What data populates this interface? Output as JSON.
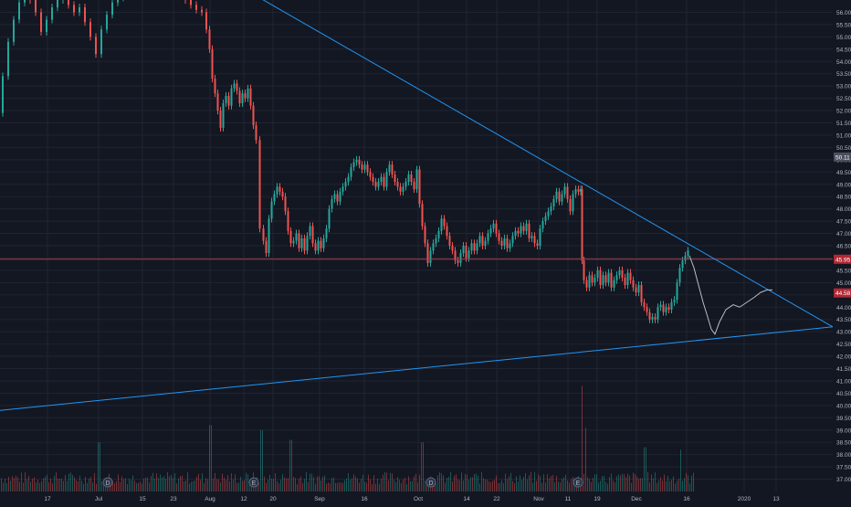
{
  "colors": {
    "background": "#131722",
    "grid": "#1f2433",
    "axis_text": "#b2b5be",
    "up": "#26a69a",
    "down": "#ef5350",
    "trendline": "#2196f3",
    "hline": "#a63d45",
    "projection": "#b8bcc8",
    "event_marker": "#2a3448",
    "price_tag_current": "#4a4f5e",
    "price_tag_red": "#b22833"
  },
  "chart_data": {
    "type": "candlestick",
    "y_axis": {
      "min": 36.5,
      "max": 56.5,
      "ticks": [
        "37.00",
        "37.50",
        "38.00",
        "38.50",
        "39.00",
        "39.50",
        "40.00",
        "40.50",
        "41.00",
        "41.50",
        "42.00",
        "42.50",
        "43.00",
        "43.50",
        "44.00",
        "44.50",
        "45.00",
        "45.50",
        "46.00",
        "46.50",
        "47.00",
        "47.50",
        "48.00",
        "48.50",
        "49.00",
        "49.50",
        "50.00",
        "50.50",
        "51.00",
        "51.50",
        "52.00",
        "52.50",
        "53.00",
        "53.50",
        "54.00",
        "54.50",
        "55.00",
        "55.50",
        "56.00"
      ]
    },
    "x_axis": {
      "ticks": [
        {
          "label": "17",
          "x": 52
        },
        {
          "label": "Jul",
          "x": 108
        },
        {
          "label": "15",
          "x": 156
        },
        {
          "label": "23",
          "x": 190
        },
        {
          "label": "Aug",
          "x": 230
        },
        {
          "label": "12",
          "x": 267
        },
        {
          "label": "20",
          "x": 299
        },
        {
          "label": "Sep",
          "x": 350
        },
        {
          "label": "16",
          "x": 399
        },
        {
          "label": "Oct",
          "x": 458
        },
        {
          "label": "14",
          "x": 511
        },
        {
          "label": "22",
          "x": 544
        },
        {
          "label": "Nov",
          "x": 590
        },
        {
          "label": "11",
          "x": 622
        },
        {
          "label": "19",
          "x": 654
        },
        {
          "label": "Dec",
          "x": 697
        },
        {
          "label": "16",
          "x": 752
        },
        {
          "label": "2020",
          "x": 815
        },
        {
          "label": "13",
          "x": 850
        }
      ]
    },
    "price_path": [
      [
        0,
        51.9
      ],
      [
        6,
        53.4
      ],
      [
        12,
        54.8
      ],
      [
        18,
        55.7
      ],
      [
        24,
        56.4
      ],
      [
        30,
        56.8
      ],
      [
        36,
        56.5
      ],
      [
        42,
        56.0
      ],
      [
        48,
        55.2
      ],
      [
        54,
        55.7
      ],
      [
        60,
        56.2
      ],
      [
        66,
        56.5
      ],
      [
        72,
        56.7
      ],
      [
        78,
        56.3
      ],
      [
        84,
        56.0
      ],
      [
        90,
        56.2
      ],
      [
        96,
        55.6
      ],
      [
        102,
        55.0
      ],
      [
        108,
        54.3
      ],
      [
        114,
        55.3
      ],
      [
        120,
        55.9
      ],
      [
        126,
        56.4
      ],
      [
        132,
        56.6
      ],
      [
        138,
        56.7
      ],
      [
        144,
        56.8
      ],
      [
        150,
        56.9
      ],
      [
        200,
        56.7
      ],
      [
        206,
        56.5
      ],
      [
        212,
        56.3
      ],
      [
        218,
        56.1
      ],
      [
        224,
        56.0
      ],
      [
        228,
        55.3
      ],
      [
        231,
        54.5
      ],
      [
        234,
        53.3
      ],
      [
        237,
        52.7
      ],
      [
        240,
        52.0
      ],
      [
        243,
        51.3
      ],
      [
        246,
        52.3
      ],
      [
        249,
        52.6
      ],
      [
        252,
        52.2
      ],
      [
        255,
        52.9
      ],
      [
        258,
        53.1
      ],
      [
        261,
        52.8
      ],
      [
        264,
        52.3
      ],
      [
        267,
        52.7
      ],
      [
        270,
        52.5
      ],
      [
        273,
        52.9
      ],
      [
        276,
        52.2
      ],
      [
        279,
        51.4
      ],
      [
        282,
        50.8
      ],
      [
        287,
        47.2
      ],
      [
        290,
        46.7
      ],
      [
        293,
        46.2
      ],
      [
        296,
        47.6
      ],
      [
        299,
        48.3
      ],
      [
        302,
        48.6
      ],
      [
        305,
        48.9
      ],
      [
        308,
        48.7
      ],
      [
        311,
        48.5
      ],
      [
        314,
        47.9
      ],
      [
        317,
        47.1
      ],
      [
        320,
        46.6
      ],
      [
        323,
        46.7
      ],
      [
        326,
        47.0
      ],
      [
        329,
        46.4
      ],
      [
        332,
        46.8
      ],
      [
        335,
        46.3
      ],
      [
        338,
        46.9
      ],
      [
        341,
        47.3
      ],
      [
        344,
        46.6
      ],
      [
        347,
        46.3
      ],
      [
        350,
        46.7
      ],
      [
        353,
        46.4
      ],
      [
        356,
        46.8
      ],
      [
        359,
        47.2
      ],
      [
        362,
        48.0
      ],
      [
        365,
        48.4
      ],
      [
        368,
        48.6
      ],
      [
        371,
        48.3
      ],
      [
        374,
        48.7
      ],
      [
        377,
        48.9
      ],
      [
        380,
        49.1
      ],
      [
        383,
        49.3
      ],
      [
        386,
        49.7
      ],
      [
        389,
        49.9
      ],
      [
        392,
        50.0
      ],
      [
        395,
        49.8
      ],
      [
        398,
        49.6
      ],
      [
        401,
        49.8
      ],
      [
        404,
        49.5
      ],
      [
        407,
        49.3
      ],
      [
        410,
        49.1
      ],
      [
        413,
        48.9
      ],
      [
        416,
        49.1
      ],
      [
        419,
        49.3
      ],
      [
        422,
        48.9
      ],
      [
        425,
        49.5
      ],
      [
        428,
        49.8
      ],
      [
        431,
        49.4
      ],
      [
        434,
        49.1
      ],
      [
        437,
        48.9
      ],
      [
        440,
        48.7
      ],
      [
        443,
        48.9
      ],
      [
        446,
        49.1
      ],
      [
        449,
        49.4
      ],
      [
        452,
        49.1
      ],
      [
        455,
        48.8
      ],
      [
        458,
        49.6
      ],
      [
        461,
        48.2
      ],
      [
        464,
        47.3
      ],
      [
        467,
        46.6
      ],
      [
        470,
        45.8
      ],
      [
        473,
        46.3
      ],
      [
        476,
        46.6
      ],
      [
        479,
        46.8
      ],
      [
        482,
        47.1
      ],
      [
        485,
        47.6
      ],
      [
        488,
        47.3
      ],
      [
        491,
        46.9
      ],
      [
        494,
        46.5
      ],
      [
        497,
        46.3
      ],
      [
        500,
        45.9
      ],
      [
        503,
        45.8
      ],
      [
        506,
        46.2
      ],
      [
        509,
        46.5
      ],
      [
        512,
        46.0
      ],
      [
        515,
        46.3
      ],
      [
        518,
        46.6
      ],
      [
        521,
        46.3
      ],
      [
        524,
        46.6
      ],
      [
        527,
        46.9
      ],
      [
        530,
        46.5
      ],
      [
        533,
        46.7
      ],
      [
        536,
        47.0
      ],
      [
        539,
        47.2
      ],
      [
        542,
        47.4
      ],
      [
        545,
        47.0
      ],
      [
        548,
        46.7
      ],
      [
        551,
        46.5
      ],
      [
        554,
        46.8
      ],
      [
        557,
        46.4
      ],
      [
        560,
        46.6
      ],
      [
        563,
        46.9
      ],
      [
        566,
        47.1
      ],
      [
        569,
        47.0
      ],
      [
        572,
        47.3
      ],
      [
        575,
        47.1
      ],
      [
        578,
        47.4
      ],
      [
        581,
        46.8
      ],
      [
        584,
        46.9
      ],
      [
        587,
        46.6
      ],
      [
        590,
        46.5
      ],
      [
        593,
        47.2
      ],
      [
        596,
        47.5
      ],
      [
        599,
        47.7
      ],
      [
        602,
        47.9
      ],
      [
        605,
        48.1
      ],
      [
        608,
        48.4
      ],
      [
        611,
        48.7
      ],
      [
        614,
        48.3
      ],
      [
        617,
        48.6
      ],
      [
        620,
        48.9
      ],
      [
        623,
        48.4
      ],
      [
        626,
        47.9
      ],
      [
        629,
        48.6
      ],
      [
        632,
        48.8
      ],
      [
        635,
        48.7
      ],
      [
        637,
        48.8
      ],
      [
        638,
        45.9
      ],
      [
        641,
        45.1
      ],
      [
        644,
        44.8
      ],
      [
        647,
        45.3
      ],
      [
        650,
        45.0
      ],
      [
        653,
        45.2
      ],
      [
        656,
        45.5
      ],
      [
        659,
        44.9
      ],
      [
        662,
        45.3
      ],
      [
        665,
        45.0
      ],
      [
        668,
        45.4
      ],
      [
        671,
        44.8
      ],
      [
        674,
        45.1
      ],
      [
        677,
        45.3
      ],
      [
        680,
        45.5
      ],
      [
        683,
        45.2
      ],
      [
        686,
        44.9
      ],
      [
        689,
        45.4
      ],
      [
        692,
        45.1
      ],
      [
        695,
        44.8
      ],
      [
        698,
        44.6
      ],
      [
        701,
        44.9
      ],
      [
        704,
        44.2
      ],
      [
        707,
        44.0
      ],
      [
        710,
        43.8
      ],
      [
        713,
        43.5
      ],
      [
        716,
        43.6
      ],
      [
        719,
        43.5
      ],
      [
        722,
        44.0
      ],
      [
        725,
        44.1
      ],
      [
        728,
        43.8
      ],
      [
        731,
        44.0
      ],
      [
        734,
        43.9
      ],
      [
        737,
        44.2
      ],
      [
        740,
        44.3
      ],
      [
        743,
        45.0
      ],
      [
        746,
        45.6
      ],
      [
        749,
        45.9
      ],
      [
        752,
        46.1
      ],
      [
        755,
        46.3
      ]
    ],
    "volume": {
      "baseline_price": 36.5,
      "spikes": [
        [
          108,
          38.5
        ],
        [
          230,
          39.2
        ],
        [
          286,
          39.0
        ],
        [
          318,
          38.6
        ],
        [
          462,
          38.5
        ],
        [
          637,
          40.8
        ],
        [
          641,
          39.1
        ],
        [
          706,
          38.3
        ],
        [
          745,
          38.2
        ]
      ]
    },
    "event_markers": [
      {
        "label": "D",
        "x": 118
      },
      {
        "label": "E",
        "x": 278
      },
      {
        "label": "D",
        "x": 472
      },
      {
        "label": "E",
        "x": 633
      }
    ],
    "trendlines": [
      {
        "name": "upper",
        "from": [
          265,
          57.0
        ],
        "to": [
          912,
          43.2
        ]
      },
      {
        "name": "lower",
        "from": [
          0,
          39.8
        ],
        "to": [
          912,
          43.2
        ]
      }
    ],
    "horizontal_line": {
      "price": 45.95,
      "label": "45.95"
    },
    "projection_path": [
      [
        755,
        46.1
      ],
      [
        760,
        45.6
      ],
      [
        765,
        44.9
      ],
      [
        770,
        44.2
      ],
      [
        775,
        43.6
      ],
      [
        779,
        43.1
      ],
      [
        783,
        42.9
      ],
      [
        788,
        43.4
      ],
      [
        795,
        43.9
      ],
      [
        803,
        44.1
      ],
      [
        810,
        44.0
      ],
      [
        818,
        44.2
      ],
      [
        826,
        44.4
      ],
      [
        833,
        44.6
      ],
      [
        840,
        44.7
      ],
      [
        846,
        44.7
      ]
    ],
    "price_tags": [
      {
        "label": "50.11",
        "price": 50.11,
        "style": "current"
      },
      {
        "label": "45.95",
        "price": 45.95,
        "style": "red"
      },
      {
        "label": "44.58",
        "price": 44.58,
        "style": "red"
      }
    ]
  }
}
